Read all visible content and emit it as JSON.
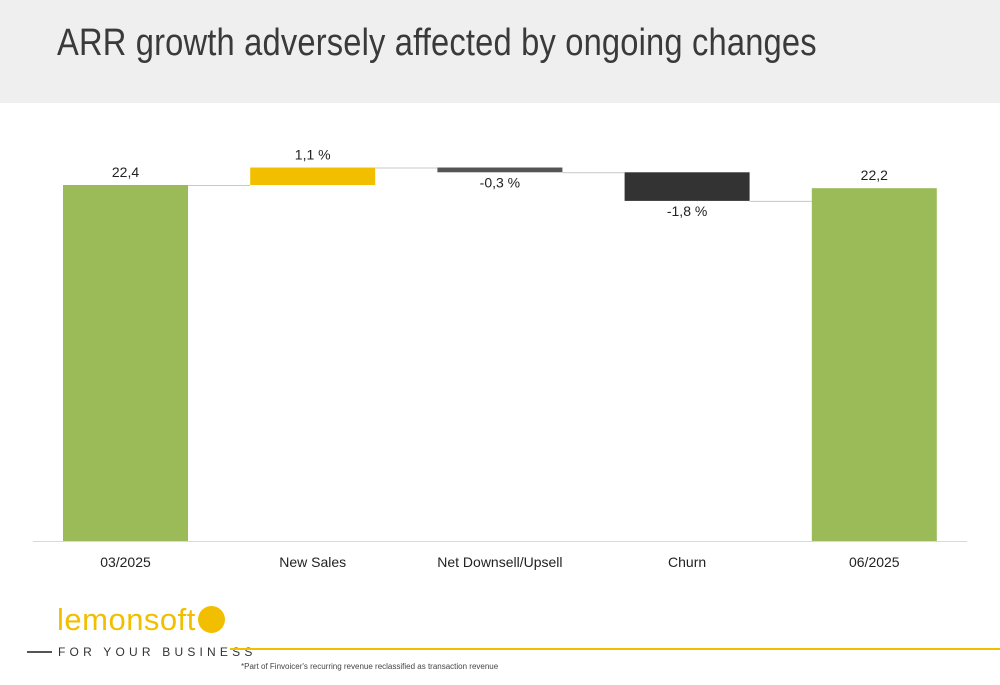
{
  "title": "ARR growth adversely affected by ongoing changes",
  "chart_data": {
    "type": "waterfall",
    "categories": [
      "03/2025",
      "New Sales",
      "Net Downsell/Upsell",
      "Churn",
      "06/2025"
    ],
    "bars": [
      {
        "label": "03/2025",
        "kind": "total",
        "value": 22.4,
        "data_label": "22,4",
        "color": "#9bbb59"
      },
      {
        "label": "New Sales",
        "kind": "increase",
        "value": 1.1,
        "data_label": "1,1 %",
        "color": "#f2bf00"
      },
      {
        "label": "Net Downsell/Upsell",
        "kind": "decrease",
        "value": -0.3,
        "data_label": "-0,3 %",
        "color": "#555555"
      },
      {
        "label": "Churn",
        "kind": "decrease",
        "value": -1.8,
        "data_label": "-1,8 %",
        "color": "#333333"
      },
      {
        "label": "06/2025",
        "kind": "total",
        "value": 22.2,
        "data_label": "22,2",
        "color": "#9bbb59"
      }
    ],
    "ylim": [
      0,
      22.4
    ],
    "grid": false,
    "legend": "none"
  },
  "logo": {
    "word": "lemonsoft",
    "tagline": "FOR YOUR BUSINESS"
  },
  "footnote": "*Part of Finvoicer's recurring revenue reclassified as transaction revenue",
  "colors": {
    "brand_yellow": "#f2bf00",
    "green": "#9bbb59",
    "title_band": "#efefef"
  }
}
